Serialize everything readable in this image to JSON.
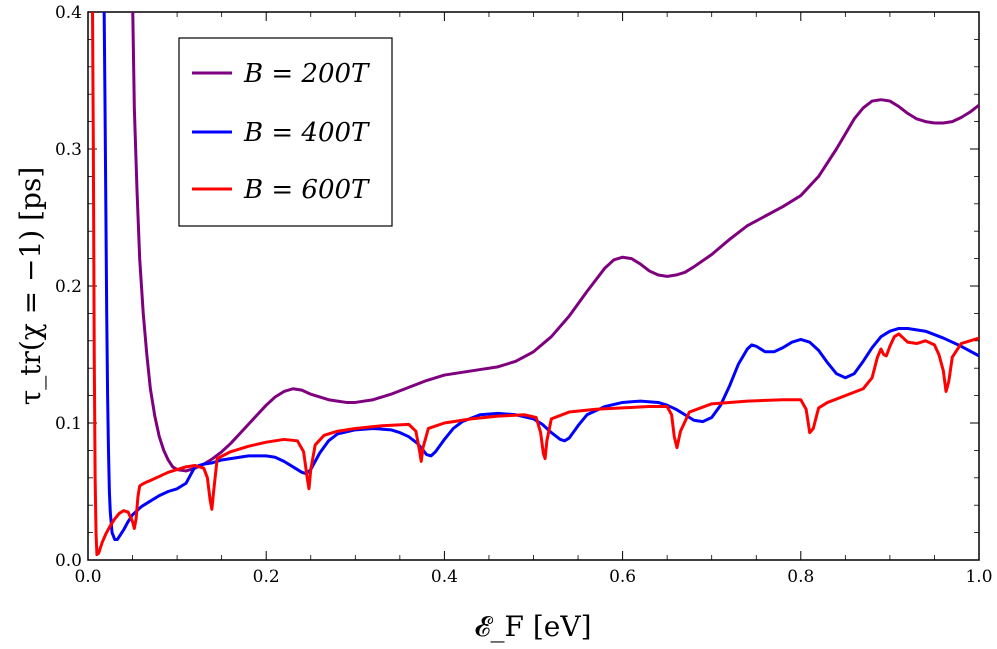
{
  "chart_data": {
    "type": "line",
    "xlabel": "𝓔_F [eV]",
    "ylabel": "τ_tr(χ = −1) [ps]",
    "xlim": [
      0.0,
      1.0
    ],
    "ylim": [
      0.0,
      0.4
    ],
    "xticks": [
      0.0,
      0.2,
      0.4,
      0.6,
      0.8,
      1.0
    ],
    "yticks": [
      0.0,
      0.1,
      0.2,
      0.3,
      0.4
    ],
    "xtick_labels": [
      "0.0",
      "0.2",
      "0.4",
      "0.6",
      "0.8",
      "1.0"
    ],
    "ytick_labels": [
      "0.0",
      "0.1",
      "0.2",
      "0.3",
      "0.4"
    ],
    "grid": false,
    "legend_position": "top-left",
    "series": [
      {
        "name": "B = 200T",
        "color": "#7f007f",
        "x": [
          0.05,
          0.052,
          0.055,
          0.058,
          0.062,
          0.066,
          0.07,
          0.075,
          0.08,
          0.085,
          0.09,
          0.095,
          0.1,
          0.11,
          0.12,
          0.13,
          0.14,
          0.15,
          0.16,
          0.17,
          0.18,
          0.19,
          0.2,
          0.21,
          0.22,
          0.23,
          0.24,
          0.25,
          0.26,
          0.27,
          0.28,
          0.29,
          0.3,
          0.32,
          0.34,
          0.36,
          0.38,
          0.4,
          0.42,
          0.44,
          0.46,
          0.48,
          0.5,
          0.52,
          0.54,
          0.56,
          0.58,
          0.59,
          0.6,
          0.61,
          0.62,
          0.63,
          0.64,
          0.65,
          0.66,
          0.67,
          0.68,
          0.7,
          0.72,
          0.74,
          0.76,
          0.78,
          0.8,
          0.82,
          0.84,
          0.86,
          0.87,
          0.88,
          0.89,
          0.9,
          0.91,
          0.92,
          0.93,
          0.94,
          0.95,
          0.96,
          0.97,
          0.98,
          0.99,
          1.0
        ],
        "y": [
          0.41,
          0.33,
          0.27,
          0.22,
          0.18,
          0.15,
          0.125,
          0.105,
          0.09,
          0.08,
          0.073,
          0.068,
          0.066,
          0.065,
          0.067,
          0.07,
          0.074,
          0.079,
          0.085,
          0.092,
          0.099,
          0.106,
          0.113,
          0.119,
          0.123,
          0.125,
          0.124,
          0.121,
          0.119,
          0.117,
          0.116,
          0.115,
          0.115,
          0.117,
          0.121,
          0.126,
          0.131,
          0.135,
          0.137,
          0.139,
          0.141,
          0.145,
          0.152,
          0.163,
          0.178,
          0.196,
          0.213,
          0.219,
          0.221,
          0.22,
          0.216,
          0.211,
          0.208,
          0.207,
          0.208,
          0.21,
          0.214,
          0.223,
          0.234,
          0.244,
          0.251,
          0.258,
          0.266,
          0.28,
          0.3,
          0.322,
          0.33,
          0.335,
          0.336,
          0.335,
          0.331,
          0.326,
          0.322,
          0.32,
          0.319,
          0.319,
          0.32,
          0.323,
          0.327,
          0.332
        ]
      },
      {
        "name": "B = 400T",
        "color": "#0000ff",
        "x": [
          0.018,
          0.019,
          0.02,
          0.021,
          0.022,
          0.023,
          0.024,
          0.025,
          0.027,
          0.03,
          0.033,
          0.036,
          0.04,
          0.045,
          0.05,
          0.06,
          0.07,
          0.08,
          0.09,
          0.1,
          0.11,
          0.12,
          0.125,
          0.13,
          0.14,
          0.15,
          0.16,
          0.17,
          0.18,
          0.19,
          0.2,
          0.21,
          0.22,
          0.23,
          0.24,
          0.245,
          0.25,
          0.26,
          0.27,
          0.28,
          0.3,
          0.32,
          0.34,
          0.35,
          0.36,
          0.37,
          0.38,
          0.385,
          0.39,
          0.4,
          0.41,
          0.42,
          0.44,
          0.46,
          0.48,
          0.5,
          0.51,
          0.52,
          0.53,
          0.535,
          0.54,
          0.55,
          0.56,
          0.58,
          0.6,
          0.62,
          0.64,
          0.65,
          0.66,
          0.67,
          0.68,
          0.69,
          0.7,
          0.71,
          0.72,
          0.73,
          0.74,
          0.745,
          0.75,
          0.76,
          0.77,
          0.78,
          0.79,
          0.8,
          0.81,
          0.82,
          0.83,
          0.84,
          0.85,
          0.86,
          0.87,
          0.88,
          0.89,
          0.9,
          0.91,
          0.92,
          0.94,
          0.96,
          0.98,
          1.0
        ],
        "y": [
          0.41,
          0.34,
          0.26,
          0.18,
          0.12,
          0.08,
          0.05,
          0.035,
          0.02,
          0.015,
          0.015,
          0.018,
          0.022,
          0.028,
          0.033,
          0.039,
          0.043,
          0.047,
          0.05,
          0.052,
          0.056,
          0.068,
          0.069,
          0.07,
          0.071,
          0.073,
          0.074,
          0.075,
          0.076,
          0.076,
          0.076,
          0.075,
          0.072,
          0.068,
          0.064,
          0.063,
          0.066,
          0.078,
          0.087,
          0.092,
          0.095,
          0.096,
          0.095,
          0.093,
          0.09,
          0.085,
          0.077,
          0.076,
          0.079,
          0.088,
          0.096,
          0.101,
          0.106,
          0.107,
          0.106,
          0.103,
          0.099,
          0.093,
          0.088,
          0.087,
          0.089,
          0.098,
          0.106,
          0.112,
          0.115,
          0.116,
          0.115,
          0.113,
          0.11,
          0.106,
          0.102,
          0.101,
          0.104,
          0.113,
          0.127,
          0.143,
          0.154,
          0.157,
          0.156,
          0.152,
          0.152,
          0.155,
          0.159,
          0.161,
          0.159,
          0.153,
          0.144,
          0.136,
          0.133,
          0.136,
          0.145,
          0.155,
          0.163,
          0.167,
          0.169,
          0.169,
          0.167,
          0.162,
          0.156,
          0.149
        ]
      },
      {
        "name": "B = 600T",
        "color": "#ff0000",
        "x": [
          0.005,
          0.006,
          0.007,
          0.008,
          0.009,
          0.01,
          0.012,
          0.014,
          0.016,
          0.02,
          0.025,
          0.03,
          0.035,
          0.04,
          0.045,
          0.05,
          0.052,
          0.054,
          0.056,
          0.058,
          0.06,
          0.063,
          0.066,
          0.07,
          0.08,
          0.09,
          0.1,
          0.11,
          0.12,
          0.13,
          0.134,
          0.137,
          0.139,
          0.141,
          0.145,
          0.16,
          0.18,
          0.2,
          0.22,
          0.235,
          0.242,
          0.246,
          0.248,
          0.25,
          0.255,
          0.265,
          0.28,
          0.3,
          0.33,
          0.36,
          0.368,
          0.372,
          0.374,
          0.376,
          0.382,
          0.4,
          0.43,
          0.46,
          0.49,
          0.503,
          0.508,
          0.511,
          0.513,
          0.515,
          0.52,
          0.54,
          0.57,
          0.6,
          0.63,
          0.65,
          0.655,
          0.658,
          0.661,
          0.665,
          0.675,
          0.7,
          0.74,
          0.78,
          0.8,
          0.806,
          0.81,
          0.814,
          0.82,
          0.83,
          0.85,
          0.87,
          0.88,
          0.886,
          0.89,
          0.893,
          0.896,
          0.9,
          0.905,
          0.91,
          0.915,
          0.92,
          0.93,
          0.94,
          0.95,
          0.955,
          0.96,
          0.963,
          0.966,
          0.97,
          0.98,
          0.99,
          1.0
        ],
        "y": [
          0.41,
          0.3,
          0.15,
          0.06,
          0.02,
          0.004,
          0.005,
          0.009,
          0.013,
          0.019,
          0.025,
          0.03,
          0.034,
          0.036,
          0.035,
          0.028,
          0.023,
          0.03,
          0.046,
          0.054,
          0.055,
          0.056,
          0.057,
          0.058,
          0.061,
          0.064,
          0.066,
          0.068,
          0.069,
          0.067,
          0.06,
          0.044,
          0.037,
          0.05,
          0.074,
          0.079,
          0.083,
          0.086,
          0.088,
          0.087,
          0.079,
          0.06,
          0.052,
          0.066,
          0.084,
          0.091,
          0.094,
          0.096,
          0.098,
          0.099,
          0.094,
          0.08,
          0.072,
          0.082,
          0.096,
          0.1,
          0.103,
          0.105,
          0.106,
          0.104,
          0.093,
          0.078,
          0.074,
          0.087,
          0.103,
          0.108,
          0.11,
          0.111,
          0.112,
          0.112,
          0.106,
          0.09,
          0.082,
          0.094,
          0.108,
          0.114,
          0.116,
          0.117,
          0.117,
          0.11,
          0.093,
          0.096,
          0.111,
          0.115,
          0.12,
          0.125,
          0.133,
          0.148,
          0.154,
          0.15,
          0.149,
          0.156,
          0.163,
          0.165,
          0.162,
          0.159,
          0.158,
          0.16,
          0.157,
          0.15,
          0.138,
          0.123,
          0.13,
          0.148,
          0.158,
          0.16,
          0.162
        ]
      }
    ]
  }
}
